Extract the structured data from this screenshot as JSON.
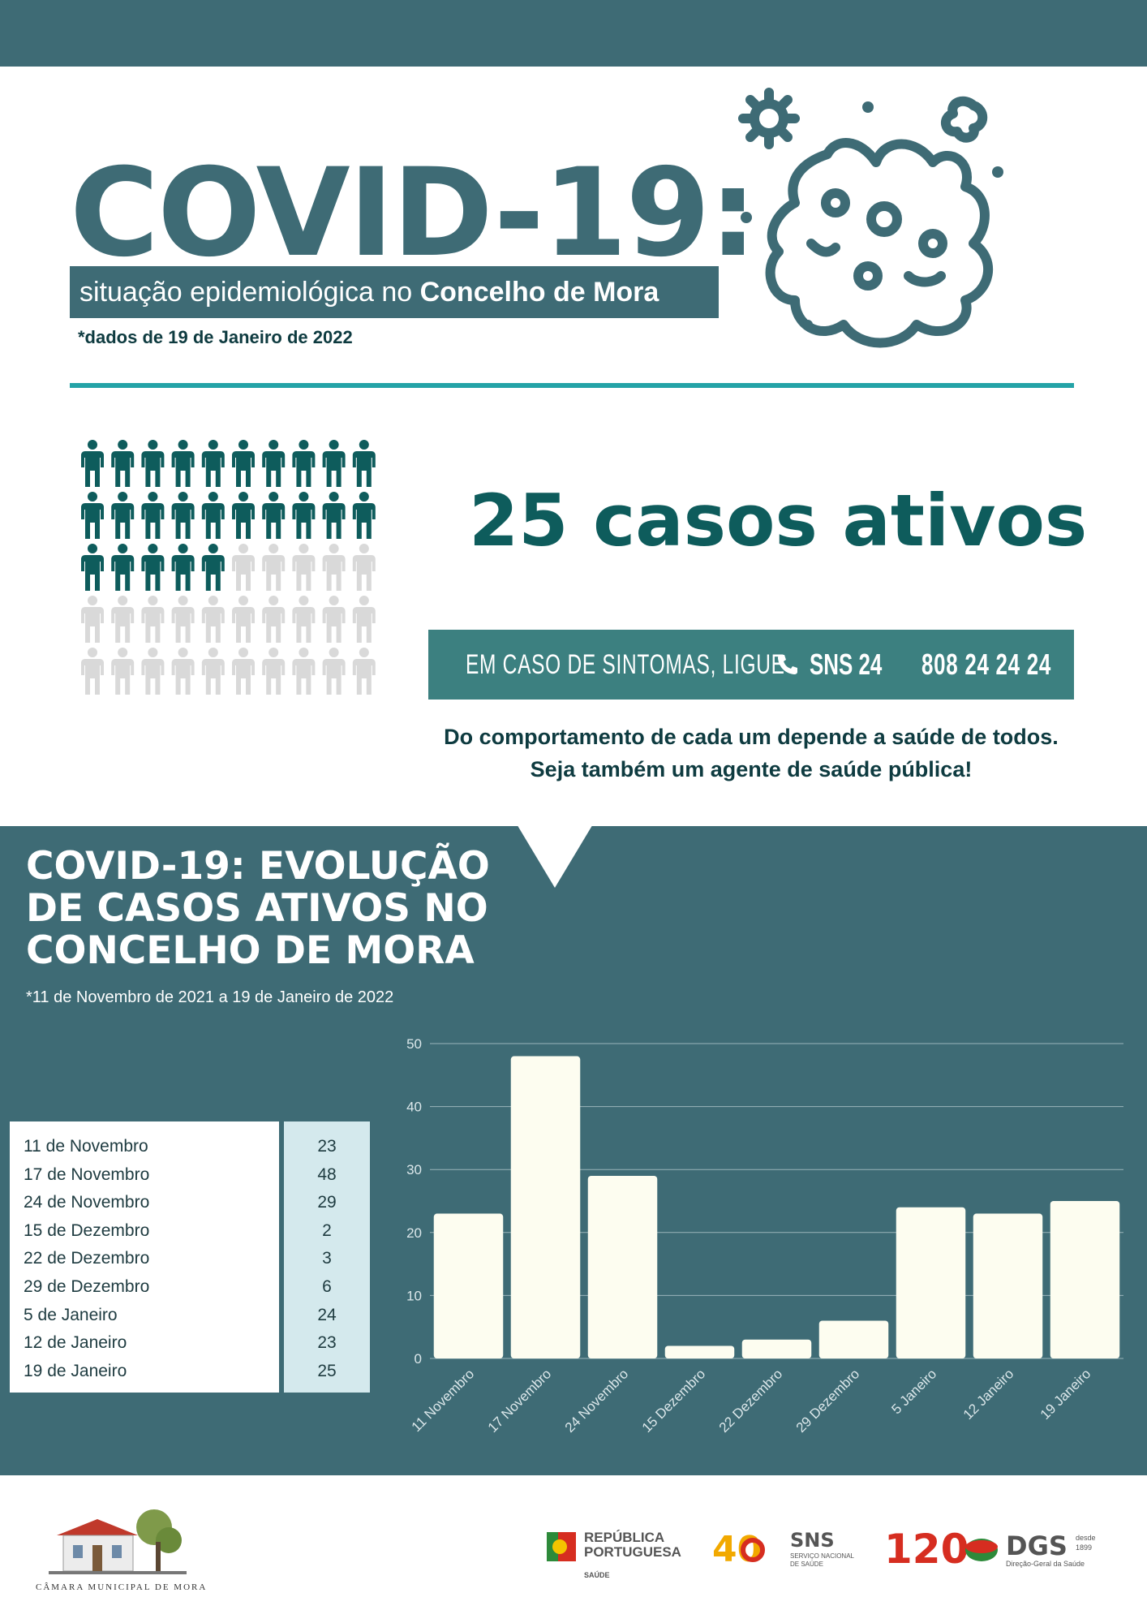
{
  "header": {
    "title": "COVID-19:",
    "subtitle_prefix": "situação epidemiológica no ",
    "subtitle_strong": "Concelho de Mora",
    "data_date": "*dados de 19 de Janeiro de 2022"
  },
  "active_cases": {
    "count": 25,
    "label": "25 casos ativos",
    "pictogram_total": 50
  },
  "hotline": {
    "label": "EM CASO DE SINTOMAS, LIGUE",
    "service": "SNS 24",
    "number": "808 24 24 24"
  },
  "message": {
    "line1": "Do comportamento de cada um depende a saúde de todos.",
    "line2": "Seja também um agente de saúde pública!"
  },
  "chart_section": {
    "title": "COVID-19: EVOLUÇÃO DE CASOS ATIVOS NO CONCELHO DE MORA",
    "subtitle": "*11 de Novembro de 2021 a 19 de Janeiro de 2022"
  },
  "table": {
    "rows": [
      {
        "date": "11 de Novembro",
        "value": "23"
      },
      {
        "date": "17 de Novembro",
        "value": "48"
      },
      {
        "date": "24 de Novembro",
        "value": "29"
      },
      {
        "date": "15 de Dezembro",
        "value": "2"
      },
      {
        "date": "22 de Dezembro",
        "value": "3"
      },
      {
        "date": "29 de Dezembro",
        "value": "6"
      },
      {
        "date": "5 de Janeiro",
        "value": "24"
      },
      {
        "date": "12 de Janeiro",
        "value": "23"
      },
      {
        "date": "19 de Janeiro",
        "value": "25"
      }
    ]
  },
  "chart_data": {
    "type": "bar",
    "categories": [
      "11 Novembro",
      "17 Novembro",
      "24 Novembro",
      "15 Dezembro",
      "22 Dezembro",
      "29 Dezembro",
      "5 Janeiro",
      "12 Janeiro",
      "19 Janeiro"
    ],
    "values": [
      23,
      48,
      29,
      2,
      3,
      6,
      24,
      23,
      25
    ],
    "ylim": [
      0,
      50
    ],
    "yticks": [
      0,
      10,
      20,
      30,
      40,
      50
    ],
    "grid": true,
    "title": "",
    "xlabel": "",
    "ylabel": ""
  },
  "footer": {
    "municipality": "CÂMARA MUNICIPAL DE MORA",
    "republic_line1": "REPÚBLICA",
    "republic_line2": "PORTUGUESA",
    "republic_sub": "SAÚDE",
    "sns_anniversary": "40",
    "sns_label": "SNS",
    "sns_sub1": "SERVIÇO NACIONAL",
    "sns_sub2": "DE SAÚDE",
    "dgs_anniversary": "120",
    "dgs_label": "DGS",
    "dgs_desde": "desde",
    "dgs_year": "1899",
    "dgs_sub": "Direção-Geral da Saúde"
  },
  "colors": {
    "primary": "#3e6b75",
    "accent": "#24a3a7",
    "dark_teal": "#0e5c5c",
    "bar": "#fdfdf0",
    "people_active": "#0e5c5c",
    "people_inactive": "#d9d9d9",
    "table_value_bg": "#d4e9ed"
  }
}
